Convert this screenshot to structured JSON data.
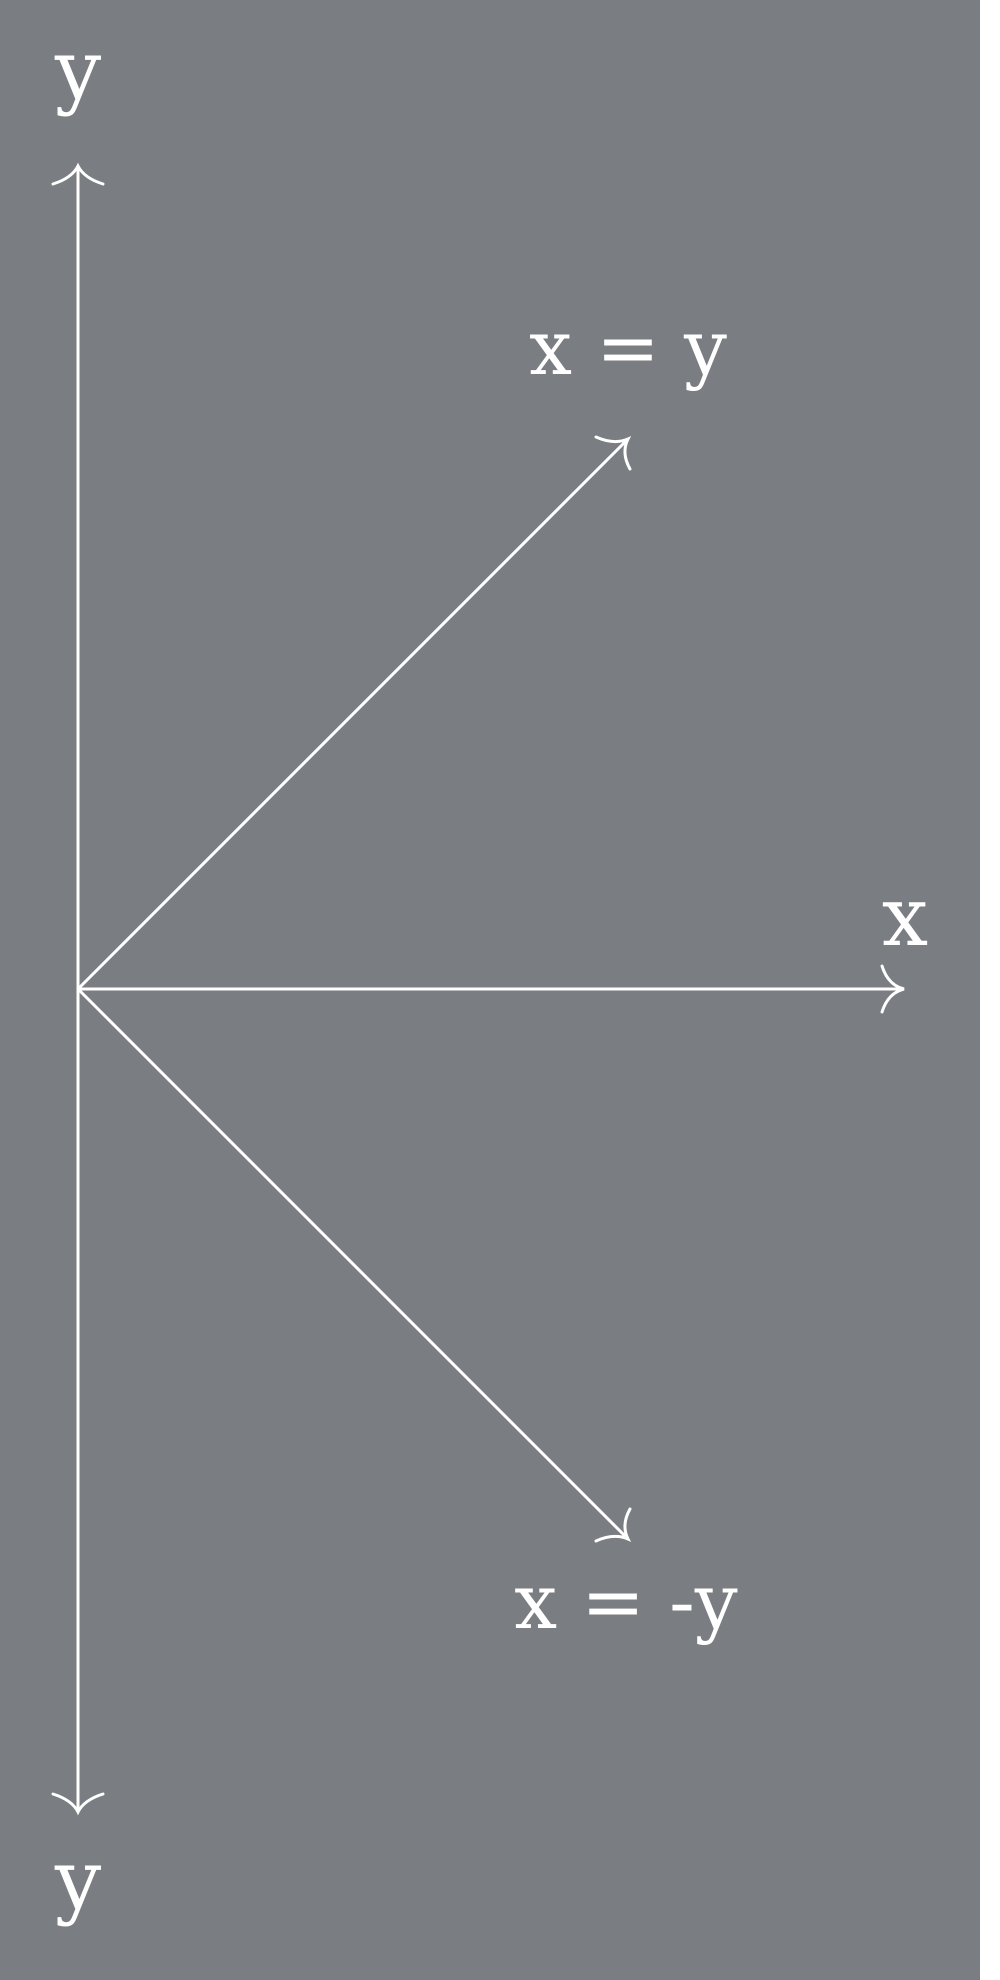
{
  "colors": {
    "background": "#7a7d81",
    "stroke": "#ffffff",
    "right_margin": "#ffffff"
  },
  "labels": {
    "y_top": "y",
    "y_bottom": "y",
    "x_right": "x",
    "line_upper": "x = y",
    "line_lower": "x = -y"
  }
}
